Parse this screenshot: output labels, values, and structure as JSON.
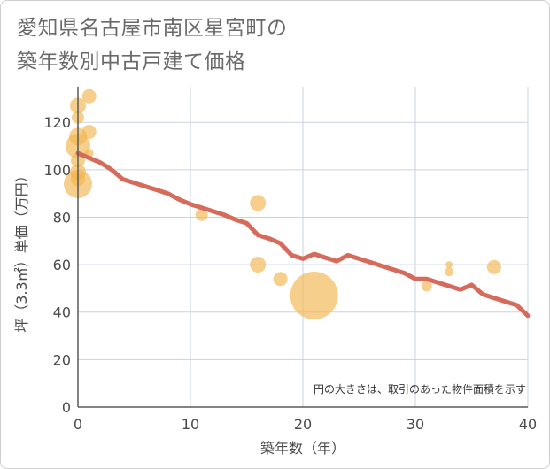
{
  "title_lines": [
    "愛知県名古屋市南区星宮町の",
    "築年数別中古戸建て価格"
  ],
  "colors": {
    "bubble": "#f2b54f",
    "line": "#d66a5b",
    "grid": "#c9d3e0",
    "axis": "#5a5a5a"
  },
  "chart_data": {
    "type": "scatter",
    "title": "愛知県名古屋市南区星宮町の築年数別中古戸建て価格",
    "xlabel": "築年数（年）",
    "ylabel": "坪（3.3㎡）単価（万円）",
    "xlim": [
      0,
      40
    ],
    "ylim": [
      0,
      135
    ],
    "x_ticks": [
      0,
      10,
      20,
      30,
      40
    ],
    "y_ticks": [
      0,
      20,
      40,
      60,
      80,
      100,
      120
    ],
    "grid": true,
    "note": "円の大きさは、取引のあった物件面積を示す",
    "bubbles": [
      {
        "x": 0,
        "y": 127,
        "size": 9
      },
      {
        "x": 0,
        "y": 122,
        "size": 7
      },
      {
        "x": 0,
        "y": 114,
        "size": 10
      },
      {
        "x": 0,
        "y": 110,
        "size": 14
      },
      {
        "x": 0,
        "y": 104,
        "size": 8
      },
      {
        "x": 0,
        "y": 99,
        "size": 9
      },
      {
        "x": 0,
        "y": 96,
        "size": 8
      },
      {
        "x": 0,
        "y": 94,
        "size": 16
      },
      {
        "x": 1,
        "y": 131,
        "size": 8
      },
      {
        "x": 1,
        "y": 116,
        "size": 8
      },
      {
        "x": 1,
        "y": 107,
        "size": 5
      },
      {
        "x": 11,
        "y": 81,
        "size": 7
      },
      {
        "x": 16,
        "y": 86,
        "size": 9
      },
      {
        "x": 16,
        "y": 60,
        "size": 9
      },
      {
        "x": 18,
        "y": 54,
        "size": 8
      },
      {
        "x": 21,
        "y": 47,
        "size": 27
      },
      {
        "x": 31,
        "y": 51,
        "size": 6
      },
      {
        "x": 33,
        "y": 60,
        "size": 4
      },
      {
        "x": 33,
        "y": 57,
        "size": 5
      },
      {
        "x": 37,
        "y": 59,
        "size": 8
      }
    ],
    "trend_line": {
      "x": [
        0,
        1,
        2,
        3,
        4,
        5,
        6,
        7,
        8,
        9,
        10,
        11,
        12,
        13,
        14,
        15,
        16,
        17,
        18,
        19,
        20,
        21,
        22,
        23,
        24,
        25,
        26,
        27,
        28,
        29,
        30,
        31,
        32,
        33,
        34,
        35,
        36,
        37,
        38,
        39,
        40
      ],
      "y": [
        107,
        105,
        103,
        100,
        96,
        94.5,
        93,
        91.5,
        90,
        87.5,
        85.5,
        84,
        82.5,
        81,
        79,
        77.5,
        72.5,
        71,
        69,
        64,
        62.5,
        64.5,
        63,
        61.5,
        64,
        62.5,
        61,
        59.5,
        58,
        56.5,
        54,
        54,
        52.5,
        51,
        49.5,
        51.5,
        47.5,
        46,
        44.5,
        43,
        38.5
      ]
    }
  }
}
